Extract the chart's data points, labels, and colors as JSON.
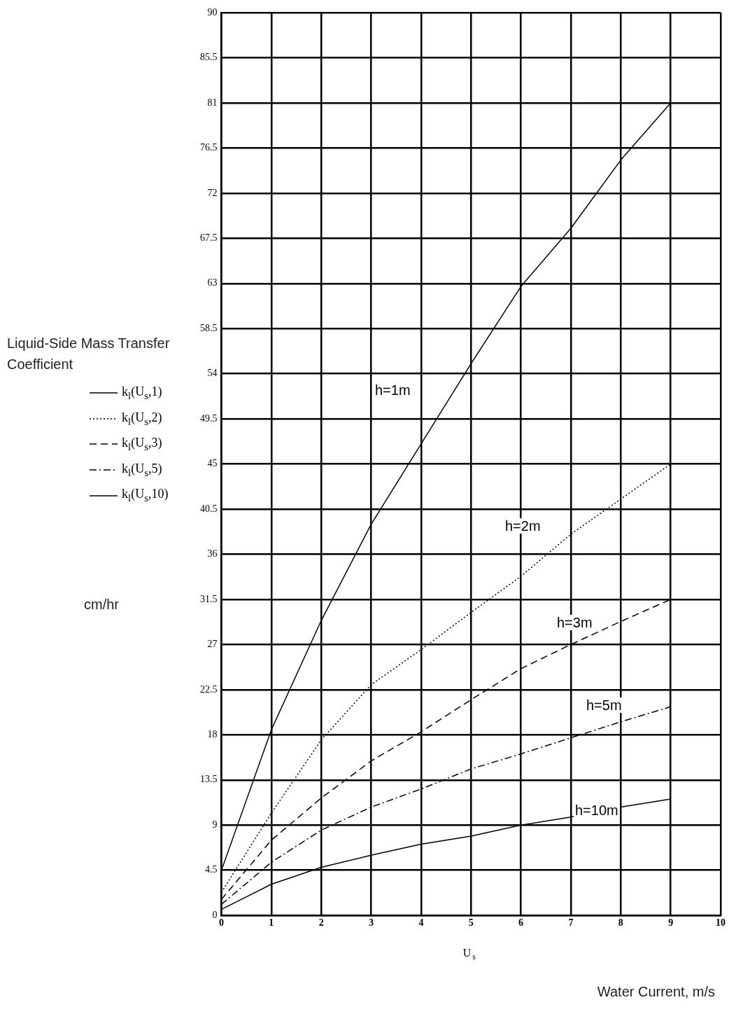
{
  "chart_data": {
    "type": "line",
    "ylabel": "Liquid-Side Mass Transfer Coefficient",
    "xlabel": "U$_{s}$",
    "x": [
      0,
      1,
      2,
      3,
      4,
      5,
      6,
      7,
      8,
      9
    ],
    "series": [
      {
        "name": "k$_{l}$(U$_{s}$,1)",
        "color": "#000000",
        "line_style": "solid",
        "values": [
          4.5,
          18.5,
          29.4,
          39,
          47,
          55,
          62.7,
          68.5,
          75.3,
          81
        ]
      },
      {
        "name": "k$_{l}$(U$_{s}$,2)",
        "color": "#000000",
        "line_style": "dotted",
        "values": [
          2.3,
          10.2,
          17.5,
          23,
          26.5,
          30.2,
          33.8,
          38,
          41.5,
          45
        ]
      },
      {
        "name": "k$_{l}$(U$_{s}$,3)",
        "color": "#000000",
        "line_style": "dashed",
        "values": [
          1.6,
          7.5,
          11.7,
          15.4,
          18.3,
          21.5,
          24.6,
          27,
          29.3,
          31.5
        ]
      },
      {
        "name": "k$_{l}$(U$_{s}$,5)",
        "color": "#000000",
        "line_style": "dashdot",
        "values": [
          1.1,
          5.3,
          8.5,
          10.8,
          12.6,
          14.6,
          16.1,
          17.7,
          19.3,
          20.8
        ]
      },
      {
        "name": "k$_{l}$(U$_{s}$,10)",
        "color": "#000000",
        "line_style": "solid",
        "values": [
          0.6,
          3.1,
          4.8,
          6,
          7.1,
          7.9,
          9,
          9.8,
          10.8,
          11.6
        ]
      }
    ],
    "xlim": [
      0,
      10
    ],
    "xticks": [
      0,
      1,
      2,
      3,
      4,
      5,
      6,
      7,
      8,
      9,
      10
    ],
    "ylim": [
      0,
      90
    ],
    "yticks": [
      0,
      4.5,
      9,
      13.5,
      18,
      22.5,
      27,
      31.5,
      36,
      40.5,
      45,
      49.5,
      54,
      58.5,
      63,
      67.5,
      72,
      76.5,
      81,
      85.5,
      90
    ],
    "grid": true,
    "legend": "left",
    "marker": "none",
    "annotations": [
      "h=1m",
      "h=2m",
      "h=3m",
      "h=5m",
      "h=10m",
      "cm/hr",
      "Water Current, m/s"
    ]
  }
}
